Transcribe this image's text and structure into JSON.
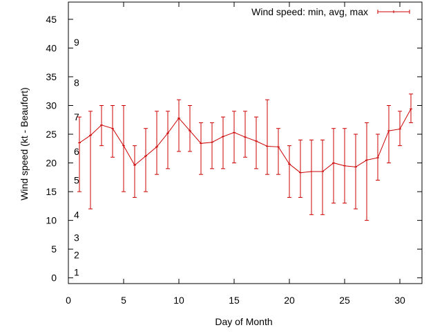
{
  "chart_data": {
    "type": "line",
    "title": "",
    "xlabel": "Day of Month",
    "ylabel": "Wind speed (kt - Beaufort)",
    "xlim": [
      0,
      32
    ],
    "ylim": [
      -1,
      48
    ],
    "xticks": [
      0,
      5,
      10,
      15,
      20,
      25,
      30
    ],
    "yticks": [
      0,
      5,
      10,
      15,
      20,
      25,
      30,
      35,
      40,
      45
    ],
    "grid": false,
    "legend_position": "top-right",
    "series": [
      {
        "name": "Wind speed: min, avg, max",
        "color": "#cc0000",
        "points": [
          {
            "x": 1,
            "avg": 23.5,
            "min": 15,
            "max": 28
          },
          {
            "x": 2,
            "avg": 24.8,
            "min": 12,
            "max": 29
          },
          {
            "x": 3,
            "avg": 26.6,
            "min": 23,
            "max": 30
          },
          {
            "x": 4,
            "avg": 26.0,
            "min": 21,
            "max": 30
          },
          {
            "x": 5,
            "avg": 23.0,
            "min": 15,
            "max": 30
          },
          {
            "x": 6,
            "avg": 19.6,
            "min": 14,
            "max": 23
          },
          {
            "x": 7,
            "avg": 21.2,
            "min": 15,
            "max": 26
          },
          {
            "x": 8,
            "avg": 22.8,
            "min": 18,
            "max": 29
          },
          {
            "x": 9,
            "avg": 25.2,
            "min": 19,
            "max": 29
          },
          {
            "x": 10,
            "avg": 27.8,
            "min": 22,
            "max": 31
          },
          {
            "x": 11,
            "avg": 25.6,
            "min": 22,
            "max": 30
          },
          {
            "x": 12,
            "avg": 23.4,
            "min": 18,
            "max": 27
          },
          {
            "x": 13,
            "avg": 23.6,
            "min": 19,
            "max": 27
          },
          {
            "x": 14,
            "avg": 24.6,
            "min": 19,
            "max": 28
          },
          {
            "x": 15,
            "avg": 25.3,
            "min": 20,
            "max": 29
          },
          {
            "x": 16,
            "avg": 24.5,
            "min": 21,
            "max": 29
          },
          {
            "x": 17,
            "avg": 23.8,
            "min": 19,
            "max": 28
          },
          {
            "x": 18,
            "avg": 22.9,
            "min": 18,
            "max": 31
          },
          {
            "x": 19,
            "avg": 22.8,
            "min": 18,
            "max": 26
          },
          {
            "x": 20,
            "avg": 19.8,
            "min": 14,
            "max": 23
          },
          {
            "x": 21,
            "avg": 18.3,
            "min": 14,
            "max": 24
          },
          {
            "x": 22,
            "avg": 18.5,
            "min": 11,
            "max": 24
          },
          {
            "x": 23,
            "avg": 18.5,
            "min": 11,
            "max": 24
          },
          {
            "x": 24,
            "avg": 20.0,
            "min": 13,
            "max": 26
          },
          {
            "x": 25,
            "avg": 19.5,
            "min": 13,
            "max": 26
          },
          {
            "x": 26,
            "avg": 19.3,
            "min": 12,
            "max": 25
          },
          {
            "x": 27,
            "avg": 20.5,
            "min": 10,
            "max": 27
          },
          {
            "x": 28,
            "avg": 20.9,
            "min": 17,
            "max": 25
          },
          {
            "x": 29,
            "avg": 25.6,
            "min": 20,
            "max": 30
          },
          {
            "x": 30,
            "avg": 25.9,
            "min": 23,
            "max": 29
          },
          {
            "x": 31,
            "avg": 29.4,
            "min": 27,
            "max": 32
          }
        ]
      }
    ],
    "beaufort_labels": [
      {
        "label": "1",
        "value": 1
      },
      {
        "label": "2",
        "value": 4
      },
      {
        "label": "3",
        "value": 7
      },
      {
        "label": "4",
        "value": 11
      },
      {
        "label": "5",
        "value": 17
      },
      {
        "label": "6",
        "value": 22
      },
      {
        "label": "7",
        "value": 28
      },
      {
        "label": "8",
        "value": 34
      },
      {
        "label": "9",
        "value": 41
      }
    ]
  }
}
